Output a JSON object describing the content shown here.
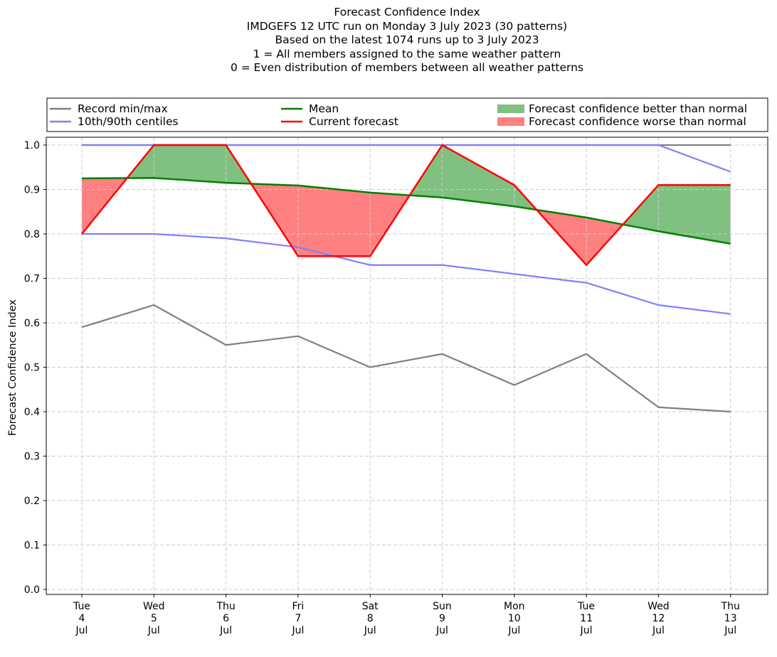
{
  "title_lines": [
    "Forecast Confidence Index",
    "IMDGEFS 12 UTC run on Monday 3 July 2023 (30 patterns)",
    "Based on the latest 1074 runs up to 3 July 2023",
    "1 = All members assigned to the same weather pattern",
    "0 = Even distribution of members between all weather patterns"
  ],
  "legend": {
    "items": [
      {
        "label": "Record min/max",
        "kind": "line",
        "color": "#808080"
      },
      {
        "label": "10th/90th centiles",
        "kind": "line",
        "color": "#8080ff"
      },
      {
        "label": "Mean",
        "kind": "line",
        "color": "#008000"
      },
      {
        "label": "Current forecast",
        "kind": "line",
        "color": "#ff0000"
      },
      {
        "label": "Forecast confidence better than normal",
        "kind": "patch",
        "color": "#80c080"
      },
      {
        "label": "Forecast confidence worse than normal",
        "kind": "patch",
        "color": "#ff8080"
      }
    ]
  },
  "chart_data": {
    "type": "line",
    "ylabel": "Forecast Confidence Index",
    "xlabel": "",
    "ylim": [
      0,
      1
    ],
    "yticks": [
      "0.0",
      "0.1",
      "0.2",
      "0.3",
      "0.4",
      "0.5",
      "0.6",
      "0.7",
      "0.8",
      "0.9",
      "1.0"
    ],
    "grid": true,
    "legend_position": "top, above plot",
    "categories": [
      [
        "Tue",
        "4",
        "Jul"
      ],
      [
        "Wed",
        "5",
        "Jul"
      ],
      [
        "Thu",
        "6",
        "Jul"
      ],
      [
        "Fri",
        "7",
        "Jul"
      ],
      [
        "Sat",
        "8",
        "Jul"
      ],
      [
        "Sun",
        "9",
        "Jul"
      ],
      [
        "Mon",
        "10",
        "Jul"
      ],
      [
        "Tue",
        "11",
        "Jul"
      ],
      [
        "Wed",
        "12",
        "Jul"
      ],
      [
        "Thu",
        "13",
        "Jul"
      ]
    ],
    "series": [
      {
        "name": "Record min/max",
        "role": "record_min",
        "color": "#808080",
        "values": [
          0.59,
          0.64,
          0.55,
          0.57,
          0.5,
          0.53,
          0.46,
          0.53,
          0.41,
          0.4
        ]
      },
      {
        "name": "Record min/max",
        "role": "record_max",
        "color": "#808080",
        "values": [
          1.0,
          1.0,
          1.0,
          1.0,
          1.0,
          1.0,
          1.0,
          1.0,
          1.0,
          1.0
        ]
      },
      {
        "name": "10th/90th centiles",
        "role": "p10",
        "color": "#8080ff",
        "values": [
          0.8,
          0.8,
          0.79,
          0.77,
          0.73,
          0.73,
          0.71,
          0.69,
          0.64,
          0.62
        ]
      },
      {
        "name": "10th/90th centiles",
        "role": "p90",
        "color": "#8080ff",
        "values": [
          1.0,
          1.0,
          1.0,
          1.0,
          1.0,
          1.0,
          1.0,
          1.0,
          1.0,
          0.94
        ]
      },
      {
        "name": "Mean",
        "role": "mean",
        "color": "#008000",
        "values": [
          0.925,
          0.926,
          0.915,
          0.909,
          0.893,
          0.882,
          0.862,
          0.837,
          0.806,
          0.778
        ]
      },
      {
        "name": "Current forecast",
        "role": "current",
        "color": "#ff0000",
        "values": [
          0.8,
          1.0,
          1.0,
          0.75,
          0.75,
          1.0,
          0.91,
          0.73,
          0.91,
          0.91
        ]
      }
    ],
    "fill_better_color": "#80c080",
    "fill_worse_color": "#ff8080"
  }
}
